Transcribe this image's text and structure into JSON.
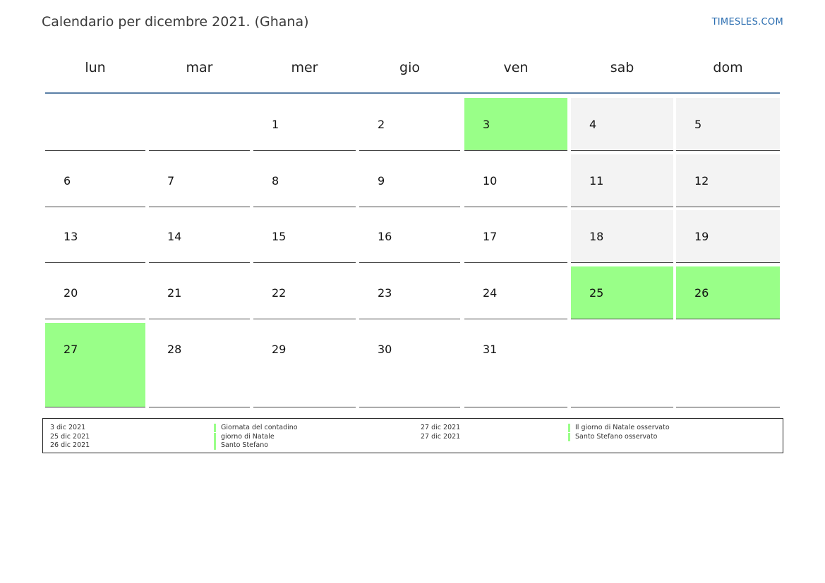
{
  "header": {
    "title": "Calendario per dicembre 2021. (Ghana)",
    "site": "TIMESLES.COM"
  },
  "weekdays": [
    "lun",
    "mar",
    "mer",
    "gio",
    "ven",
    "sab",
    "dom"
  ],
  "weeks": [
    [
      null,
      null,
      "1",
      "2",
      "3",
      "4",
      "5"
    ],
    [
      "6",
      "7",
      "8",
      "9",
      "10",
      "11",
      "12"
    ],
    [
      "13",
      "14",
      "15",
      "16",
      "17",
      "18",
      "19"
    ],
    [
      "20",
      "21",
      "22",
      "23",
      "24",
      "25",
      "26"
    ],
    [
      "27",
      "28",
      "29",
      "30",
      "31",
      null,
      null
    ]
  ],
  "holiday_days": [
    "3",
    "25",
    "26",
    "27"
  ],
  "colors": {
    "holiday": "#99ff88",
    "weekend": "#f3f3f3",
    "header_line": "#5a7fa6",
    "link": "#2a6db0"
  },
  "legend": {
    "left": [
      {
        "date": "3 dic 2021",
        "name": "Giornata del contadino"
      },
      {
        "date": "25 dic 2021",
        "name": "giorno di Natale"
      },
      {
        "date": "26 dic 2021",
        "name": "Santo Stefano"
      }
    ],
    "right": [
      {
        "date": "27 dic 2021",
        "name": "Il giorno di Natale osservato"
      },
      {
        "date": "27 dic 2021",
        "name": "Santo Stefano osservato"
      }
    ]
  }
}
